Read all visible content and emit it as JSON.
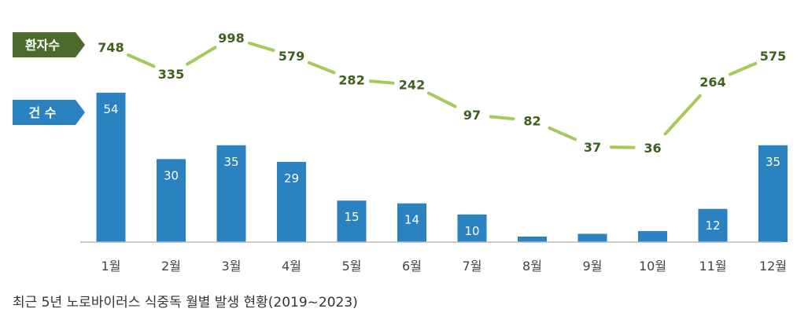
{
  "chart_data": {
    "type": "bar+line",
    "categories": [
      "1월",
      "2월",
      "3월",
      "4월",
      "5월",
      "6월",
      "7월",
      "8월",
      "9월",
      "10월",
      "11월",
      "12월"
    ],
    "series": [
      {
        "name": "건 수",
        "type": "bar",
        "values": [
          54,
          30,
          35,
          29,
          15,
          14,
          10,
          2,
          3,
          4,
          12,
          35
        ]
      },
      {
        "name": "환자수",
        "type": "line",
        "values": [
          748,
          335,
          998,
          579,
          282,
          242,
          97,
          82,
          37,
          36,
          264,
          575
        ]
      }
    ],
    "bar_ylim": [
      0,
      60
    ],
    "colors": {
      "bar": "#2a82c1",
      "line": "#a7c95a",
      "line_label": "#3f5f1f",
      "patients_tag": "#4a6b2b",
      "cases_tag": "#2a82c1",
      "axis": "#bbbbbb"
    }
  },
  "legend": {
    "patients_tag": "환자수",
    "cases_tag": "건 수"
  },
  "caption": "최근 5년 노로바이러스 식중독 월별 발생 현황(2019~2023)"
}
